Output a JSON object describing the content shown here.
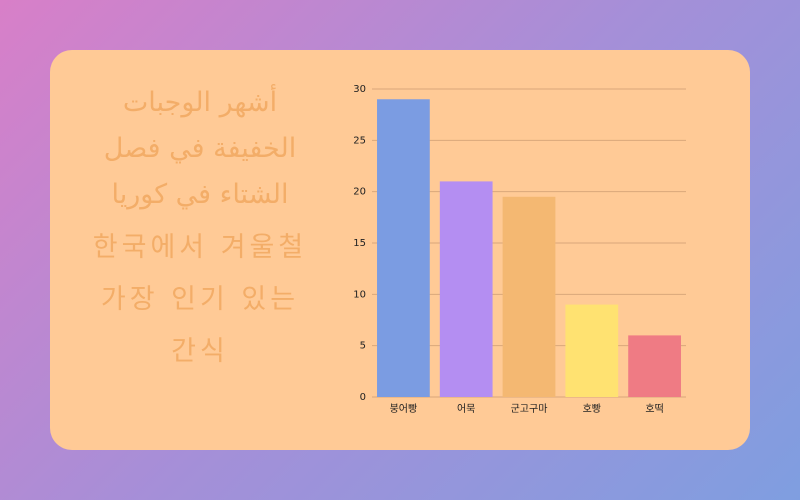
{
  "chart_data": {
    "type": "bar",
    "title": "أشهر الوجبات الخفيفة في فصل الشتاء في كوريا",
    "subtitle": "한국에서 겨울철 가장 인기 있는 간식",
    "categories": [
      "붕어빵",
      "어묵",
      "군고구마",
      "호빵",
      "호떡"
    ],
    "values": [
      29,
      21,
      19.5,
      9,
      6
    ],
    "colors": [
      "#7b9ce2",
      "#b48ef2",
      "#f4b872",
      "#ffe271",
      "#ef7b84"
    ],
    "ylim": [
      0,
      30
    ],
    "yticks": [
      0,
      5,
      10,
      15,
      20,
      25,
      30
    ],
    "grid": true
  }
}
